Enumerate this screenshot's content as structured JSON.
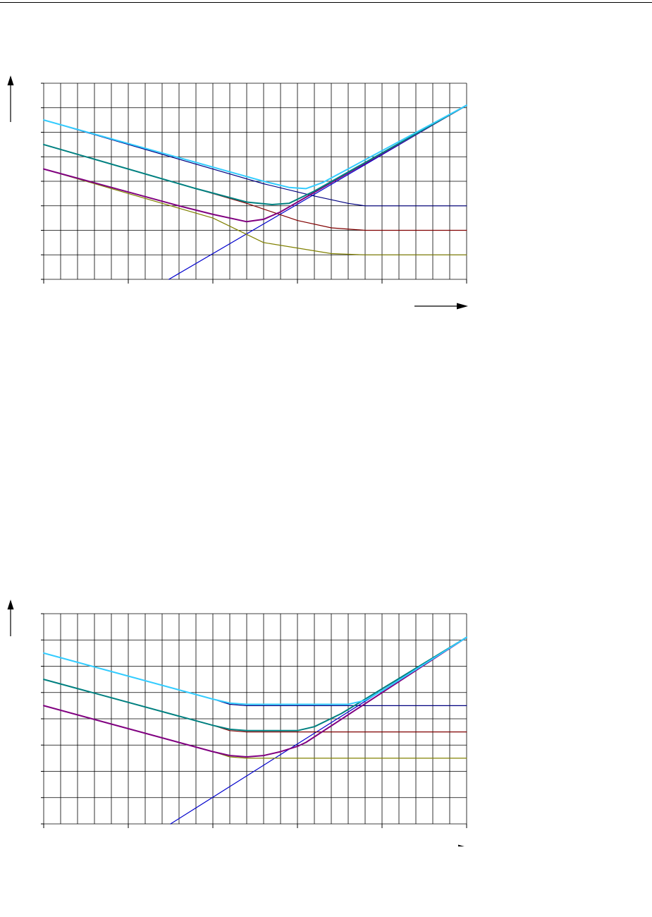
{
  "chart_data": [
    {
      "type": "line",
      "xlim": [
        0,
        25
      ],
      "ylim": [
        0,
        8
      ],
      "x_grid_step": 1,
      "y_grid_step": 1,
      "grid": true,
      "x_major_tick_step": 5,
      "colors": {
        "threshold": "#0000cc",
        "series_a": "#808000",
        "series_b": "#800000",
        "series_c": "#000080",
        "sum_a": "#800080",
        "sum_b": "#008080",
        "sum_c": "#33ccff"
      },
      "series": [
        {
          "key": "threshold",
          "points": [
            [
              7.4,
              0
            ],
            [
              25,
              7.1
            ]
          ]
        },
        {
          "key": "series_a",
          "points": [
            [
              0,
              4.5
            ],
            [
              10,
              2.5
            ],
            [
              13,
              1.5
            ],
            [
              17,
              1.05
            ],
            [
              19,
              1.0
            ],
            [
              25,
              1.0
            ]
          ]
        },
        {
          "key": "series_b",
          "points": [
            [
              0,
              5.5
            ],
            [
              12,
              3.1
            ],
            [
              15,
              2.4
            ],
            [
              17,
              2.1
            ],
            [
              19,
              2.0
            ],
            [
              25,
              2.0
            ]
          ]
        },
        {
          "key": "series_c",
          "points": [
            [
              0,
              6.5
            ],
            [
              13,
              3.9
            ],
            [
              16,
              3.4
            ],
            [
              18,
              3.1
            ],
            [
              19,
              3.0
            ],
            [
              25,
              3.0
            ]
          ]
        },
        {
          "key": "sum_a",
          "points": [
            [
              0,
              4.5
            ],
            [
              8,
              3.0
            ],
            [
              10,
              2.65
            ],
            [
              12,
              2.35
            ],
            [
              13,
              2.45
            ],
            [
              14,
              2.75
            ],
            [
              15.5,
              3.35
            ],
            [
              25,
              7.1
            ]
          ]
        },
        {
          "key": "sum_b",
          "points": [
            [
              0,
              5.5
            ],
            [
              9,
              3.7
            ],
            [
              12,
              3.15
            ],
            [
              13.5,
              3.05
            ],
            [
              14.5,
              3.1
            ],
            [
              16,
              3.6
            ],
            [
              25,
              7.1
            ]
          ]
        },
        {
          "key": "sum_c",
          "points": [
            [
              0,
              6.5
            ],
            [
              13,
              4.0
            ],
            [
              14.5,
              3.75
            ],
            [
              15.5,
              3.7
            ],
            [
              16.5,
              3.95
            ],
            [
              25,
              7.1
            ]
          ]
        }
      ]
    },
    {
      "type": "line",
      "xlim": [
        0,
        25
      ],
      "ylim": [
        0,
        8
      ],
      "x_grid_step": 1,
      "y_grid_step": 1,
      "grid": true,
      "x_major_tick_step": 5,
      "colors": {
        "threshold": "#0000cc",
        "series_a": "#808000",
        "series_b": "#800000",
        "series_c": "#000080",
        "sum_a": "#800080",
        "sum_b": "#008080",
        "sum_c": "#33ccff"
      },
      "series": [
        {
          "key": "threshold",
          "points": [
            [
              7.5,
              0
            ],
            [
              25,
              7.1
            ]
          ]
        },
        {
          "key": "series_a",
          "points": [
            [
              0,
              4.5
            ],
            [
              10,
              2.75
            ],
            [
              11,
              2.55
            ],
            [
              12,
              2.5
            ],
            [
              25,
              2.5
            ]
          ]
        },
        {
          "key": "series_b",
          "points": [
            [
              0,
              5.5
            ],
            [
              10,
              3.75
            ],
            [
              11,
              3.55
            ],
            [
              12,
              3.5
            ],
            [
              25,
              3.5
            ]
          ]
        },
        {
          "key": "series_c",
          "points": [
            [
              0,
              6.5
            ],
            [
              10,
              4.75
            ],
            [
              11,
              4.55
            ],
            [
              12,
              4.5
            ],
            [
              25,
              4.5
            ]
          ]
        },
        {
          "key": "sum_a",
          "points": [
            [
              0,
              4.5
            ],
            [
              10,
              2.75
            ],
            [
              11,
              2.6
            ],
            [
              12,
              2.55
            ],
            [
              13,
              2.6
            ],
            [
              14,
              2.75
            ],
            [
              15,
              2.95
            ],
            [
              15.5,
              3.1
            ],
            [
              25,
              7.1
            ]
          ]
        },
        {
          "key": "sum_b",
          "points": [
            [
              0,
              5.5
            ],
            [
              10,
              3.75
            ],
            [
              11,
              3.6
            ],
            [
              12,
              3.55
            ],
            [
              15,
              3.55
            ],
            [
              16,
              3.7
            ],
            [
              17.6,
              4.2
            ],
            [
              25,
              7.1
            ]
          ]
        },
        {
          "key": "sum_c",
          "points": [
            [
              0,
              6.5
            ],
            [
              10,
              4.75
            ],
            [
              11,
              4.6
            ],
            [
              12,
              4.55
            ],
            [
              18,
              4.55
            ],
            [
              19,
              4.7
            ],
            [
              20.1,
              5.1
            ],
            [
              25,
              7.1
            ]
          ]
        }
      ]
    }
  ]
}
